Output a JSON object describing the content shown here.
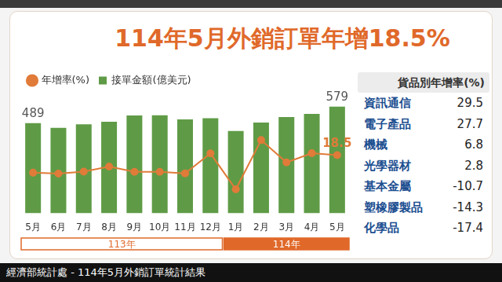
{
  "header": {
    "title": "114年5月外銷訂單年增18.5%"
  },
  "caption": "經濟部統計處 - 114年5月外銷訂單統計結果",
  "chart_data": {
    "type": "bar",
    "categories": [
      "5月",
      "6月",
      "7月",
      "8月",
      "9月",
      "10月",
      "11月",
      "12月",
      "1月",
      "2月",
      "3月",
      "4月",
      "5月"
    ],
    "periods": [
      "113年",
      "113年",
      "113年",
      "113年",
      "113年",
      "113年",
      "113年",
      "113年",
      "114年",
      "114年",
      "114年",
      "114年",
      "114年"
    ],
    "series": [
      {
        "name": "接單金額(億美元)",
        "type": "bar",
        "color": "#5f9b46",
        "values": [
          489,
          464,
          483,
          497,
          531,
          532,
          509,
          516,
          447,
          492,
          522,
          539,
          579
        ],
        "value_labels": [
          "489",
          null,
          null,
          null,
          null,
          null,
          null,
          null,
          null,
          null,
          null,
          null,
          "579"
        ]
      },
      {
        "name": "年增率(%)",
        "type": "line",
        "axis": "y2",
        "color": "#e07b39",
        "marker": "circle",
        "values": [
          3.9,
          3.1,
          4.8,
          9.1,
          4.6,
          4.6,
          3.3,
          20.0,
          -10.0,
          31.1,
          12.5,
          20.2,
          18.5
        ],
        "value_labels": [
          null,
          null,
          null,
          null,
          null,
          null,
          null,
          null,
          null,
          null,
          null,
          null,
          "18.5"
        ]
      }
    ],
    "ylim": [
      0,
      650
    ],
    "y2lim": [
      -30,
      70
    ],
    "legend": "top-left",
    "grid": false,
    "tick_labels": "x"
  },
  "table": {
    "title": "貨品別年增率(%)",
    "rows": [
      [
        "資訊通信",
        29.5
      ],
      [
        "電子產品",
        27.7
      ],
      [
        "機械",
        6.8
      ],
      [
        "光學器材",
        2.8
      ],
      [
        "基本金屬",
        -10.7
      ],
      [
        "塑橡膠製品",
        -14.3
      ],
      [
        "化學品",
        -17.4
      ]
    ]
  }
}
